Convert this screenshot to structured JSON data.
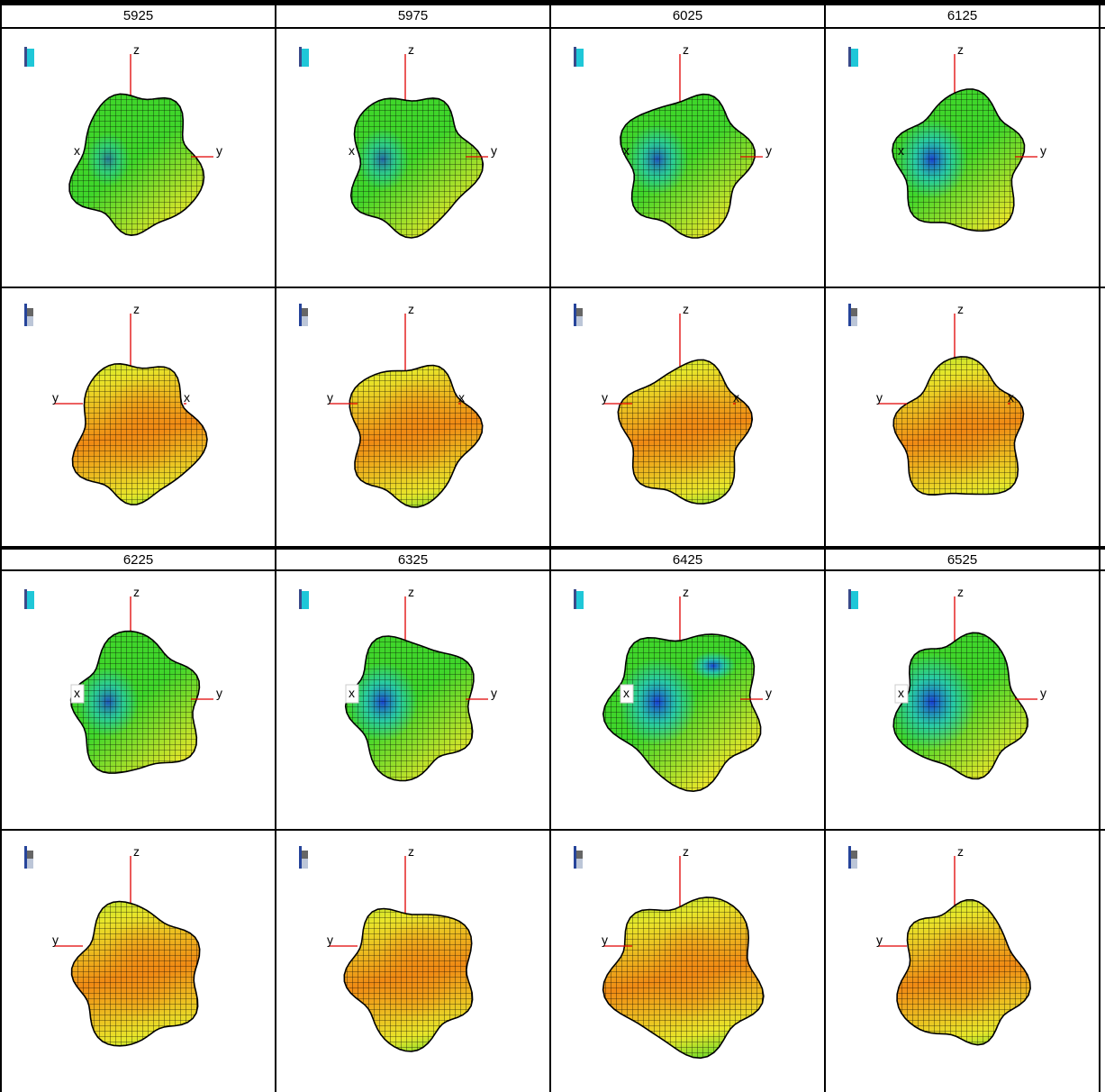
{
  "groups": [
    {
      "headers": [
        "5925",
        "5975",
        "6025",
        "6125"
      ],
      "views": [
        {
          "row": "front",
          "palette": "blue-cyan",
          "blue": [
            0.12,
            0.1
          ]
        },
        {
          "row": "back",
          "palette": "gray-blue",
          "blue": [
            0,
            0
          ]
        }
      ]
    },
    {
      "headers": [
        "6225",
        "6325",
        "6425",
        "6525"
      ],
      "views": [
        {
          "row": "front",
          "palette": "blue-cyan",
          "blue": [
            0.35,
            0.3
          ]
        },
        {
          "row": "back",
          "palette": "gray-blue",
          "blue": [
            0,
            0
          ]
        }
      ]
    }
  ],
  "axis_labels": {
    "z": "z",
    "x": "x",
    "y": "y"
  },
  "colors": {
    "axis": "#e00000",
    "mesh": "#000000",
    "red": "#e8351a",
    "orange": "#f08a14",
    "yellow": "#e8e62a",
    "green": "#3fd62a",
    "cyan": "#1fc7d8",
    "blue": "#1a3fd0"
  },
  "icons": [
    "colorbar-icon"
  ]
}
